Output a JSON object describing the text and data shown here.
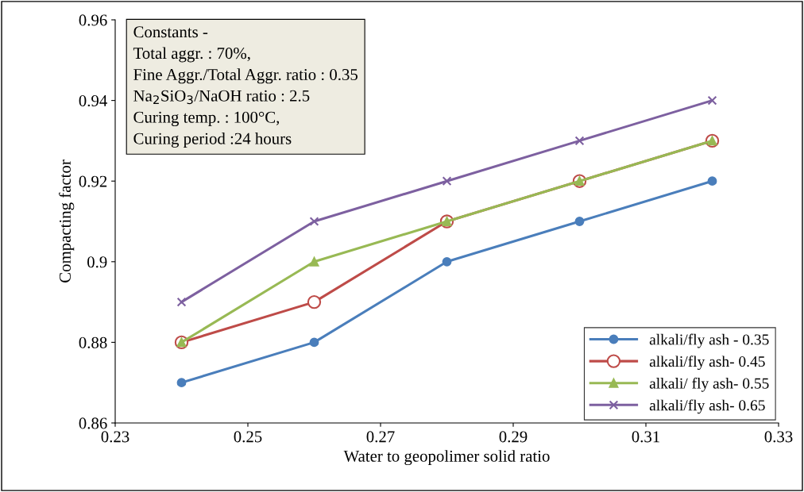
{
  "chart_data": {
    "type": "line",
    "xlabel": "Water to geopolimer solid ratio",
    "ylabel": "Compacting factor",
    "x": [
      0.24,
      0.26,
      0.28,
      0.3,
      0.32
    ],
    "series": [
      {
        "name": "alkali/fly ash - 0.35",
        "color": "#4a7ebb",
        "marker": "circle",
        "values": [
          0.87,
          0.88,
          0.9,
          0.91,
          0.92
        ]
      },
      {
        "name": "alkali/fly ash- 0.45",
        "color": "#be4b48",
        "marker": "circle_open",
        "values": [
          0.88,
          0.89,
          0.91,
          0.92,
          0.93
        ]
      },
      {
        "name": "alkali/ fly ash- 0.55",
        "color": "#98b954",
        "marker": "triangle",
        "values": [
          0.88,
          0.9,
          0.91,
          0.92,
          0.93
        ]
      },
      {
        "name": "alkali/fly ash- 0.65",
        "color": "#7d60a0",
        "marker": "cross",
        "values": [
          0.89,
          0.91,
          0.92,
          0.93,
          0.94
        ]
      }
    ],
    "xlim": [
      0.23,
      0.33
    ],
    "xticks": [
      0.23,
      0.25,
      0.27,
      0.29,
      0.31,
      0.33
    ],
    "ylim": [
      0.86,
      0.96
    ],
    "yticks": [
      {
        "value": 0.86,
        "label": "0.86"
      },
      {
        "value": 0.88,
        "label": "0.88"
      },
      0.9,
      {
        "value": 0.92,
        "label": "0.92"
      },
      {
        "value": 0.94,
        "label": "0.94"
      },
      {
        "value": 0.96,
        "label": "0.96"
      }
    ],
    "annotations": [
      "Constants -",
      "Total aggr. : 70%,",
      "Fine Aggr./Total Aggr. ratio : 0.35",
      "Na$_{2}$SiO$_{3}$/NaOH ratio : 2.5",
      "Curing temp. : 100°C,",
      "Curing period :24 hours"
    ],
    "grid": false,
    "legend": "right",
    "line_style": "solid"
  }
}
